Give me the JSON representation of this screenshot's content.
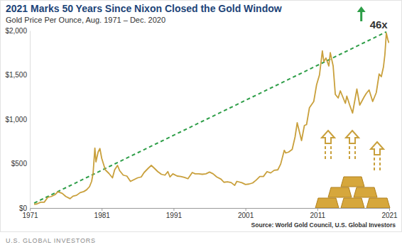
{
  "chart_data": {
    "type": "line",
    "title": "2021 Marks 50 Years Since Nixon Closed the Gold Window",
    "subtitle": "Gold Price Per Ounce, Aug. 1971 – Dec. 2020",
    "source": "Source: World Gold Council, U.S. Global Investors",
    "footer": "U.S. GLOBAL INVESTORS",
    "annotation": "46x",
    "color": "#c9a03c",
    "grid": false,
    "x": [
      1971.6,
      1972.0,
      1972.5,
      1973.0,
      1973.5,
      1974.0,
      1974.5,
      1974.9,
      1975.5,
      1976.0,
      1976.6,
      1977.0,
      1977.5,
      1978.0,
      1978.5,
      1978.9,
      1979.3,
      1979.6,
      1979.8,
      1980.05,
      1980.2,
      1980.5,
      1980.75,
      1981.0,
      1981.5,
      1982.0,
      1982.5,
      1982.8,
      1983.2,
      1983.5,
      1984.0,
      1984.5,
      1985.0,
      1985.5,
      1986.0,
      1986.5,
      1986.9,
      1987.5,
      1987.9,
      1988.3,
      1988.8,
      1989.3,
      1989.8,
      1990.2,
      1990.5,
      1990.9,
      1991.5,
      1992.0,
      1992.5,
      1993.0,
      1993.6,
      1994.0,
      1994.5,
      1995.0,
      1995.5,
      1996.0,
      1996.5,
      1997.0,
      1997.6,
      1998.0,
      1998.5,
      1999.0,
      1999.5,
      1999.8,
      2000.5,
      2001.0,
      2001.5,
      2002.0,
      2002.5,
      2003.0,
      2003.5,
      2004.0,
      2004.5,
      2005.0,
      2005.5,
      2005.9,
      2006.4,
      2006.6,
      2007.0,
      2007.5,
      2007.9,
      2008.2,
      2008.8,
      2009.2,
      2009.5,
      2009.9,
      2010.5,
      2010.9,
      2011.3,
      2011.7,
      2011.9,
      2012.2,
      2012.6,
      2012.8,
      2013.2,
      2013.5,
      2013.9,
      2014.2,
      2014.9,
      2015.1,
      2015.5,
      2015.9,
      2016.5,
      2016.9,
      2017.5,
      2017.8,
      2018.2,
      2018.7,
      2019.2,
      2019.6,
      2019.9,
      2020.2,
      2020.4,
      2020.6,
      2020.8,
      2020.95
    ],
    "values": [
      42,
      46,
      65,
      65,
      120,
      130,
      150,
      183,
      165,
      130,
      105,
      133,
      143,
      173,
      185,
      205,
      240,
      300,
      390,
      675,
      520,
      630,
      670,
      560,
      430,
      390,
      340,
      430,
      480,
      420,
      370,
      360,
      300,
      320,
      340,
      350,
      400,
      450,
      480,
      450,
      410,
      380,
      370,
      410,
      350,
      385,
      360,
      355,
      345,
      330,
      400,
      385,
      385,
      380,
      385,
      405,
      385,
      350,
      325,
      290,
      295,
      287,
      255,
      300,
      285,
      265,
      270,
      282,
      315,
      355,
      355,
      410,
      395,
      425,
      430,
      495,
      650,
      620,
      630,
      660,
      800,
      960,
      760,
      930,
      940,
      1130,
      1200,
      1390,
      1500,
      1770,
      1650,
      1690,
      1600,
      1750,
      1600,
      1280,
      1240,
      1320,
      1180,
      1260,
      1160,
      1070,
      1340,
      1160,
      1250,
      1290,
      1330,
      1200,
      1300,
      1510,
      1480,
      1590,
      1730,
      1970,
      1900,
      1860
    ],
    "trend": {
      "x": [
        1971.6,
        2020.6
      ],
      "values": [
        55,
        1985
      ],
      "color": "#2e9e48",
      "line_style": "dashed"
    },
    "xlim": [
      1971,
      2021
    ],
    "xticks": [
      1971,
      1981,
      1991,
      2001,
      2011,
      2021
    ],
    "ylim": [
      0,
      2000
    ],
    "yticks": [
      {
        "value": 0,
        "label": "$0"
      },
      {
        "value": 500,
        "label": "$500"
      },
      {
        "value": 1000,
        "label": "$1,000"
      },
      {
        "value": 1500,
        "label": "$1,500"
      },
      {
        "value": 2000,
        "label": "$2,000"
      }
    ]
  }
}
